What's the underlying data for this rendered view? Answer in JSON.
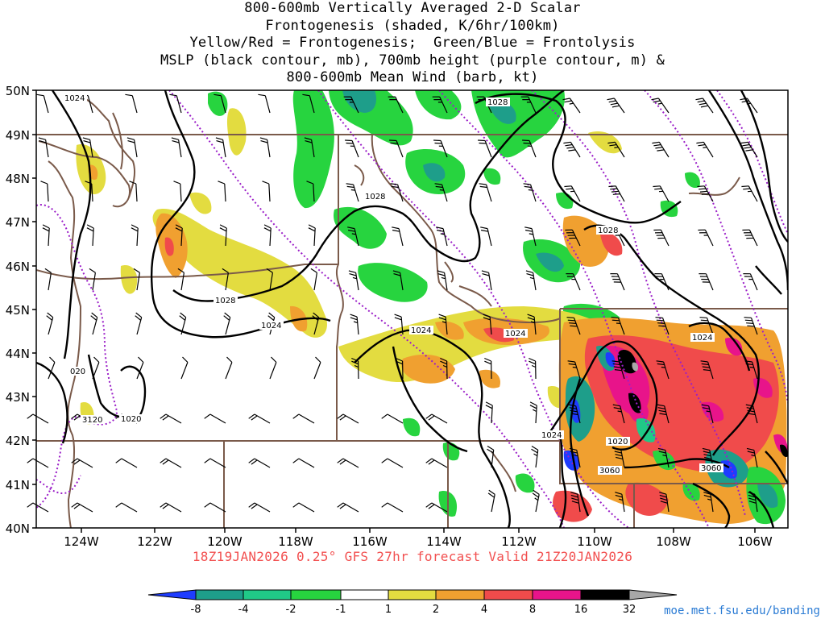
{
  "title": {
    "line1": "800-600mb Vertically Averaged 2-D Scalar",
    "line2": "Frontogenesis (shaded, K/6hr/100km)",
    "line3": "Yellow/Red = Frontogenesis;  Green/Blue = Frontolysis",
    "line4": "MSLP (black contour, mb), 700mb height (purple contour, m) &",
    "line5": "800-600mb Mean Wind (barb, kt)"
  },
  "map": {
    "lat_labels": [
      "50N",
      "49N",
      "48N",
      "47N",
      "46N",
      "45N",
      "44N",
      "43N",
      "42N",
      "41N",
      "40N"
    ],
    "lon_labels": [
      "124W",
      "122W",
      "120W",
      "118W",
      "116W",
      "114W",
      "112W",
      "110W",
      "108W",
      "106W"
    ],
    "mslp_labels": [
      "1024",
      "1028",
      "1028",
      "1028",
      "1028",
      "1024",
      "1024",
      "1024",
      "1020",
      "1020",
      "1024",
      "1024",
      "020"
    ],
    "height_labels": [
      "3120",
      "3060",
      "3060"
    ],
    "colors": {
      "state_border": "#7a5a4a",
      "mslp": "#000000",
      "height": "#9b1fc8",
      "barb": "#000000"
    }
  },
  "footer": {
    "valid": "18Z19JAN2026 0.25° GFS 27hr forecast Valid 21Z20JAN2026",
    "credit": "moe.met.fsu.edu/banding"
  },
  "colorbar": {
    "labels": [
      "-8",
      "-4",
      "-2",
      "-1",
      "1",
      "2",
      "4",
      "8",
      "16",
      "32"
    ],
    "colors": [
      "#1e3cff",
      "#1e9e8a",
      "#20c987",
      "#27d43f",
      "#ffffff",
      "#e3dc40",
      "#f0a030",
      "#f04b4b",
      "#e8148a",
      "#000000",
      "#a8a8a8"
    ]
  }
}
